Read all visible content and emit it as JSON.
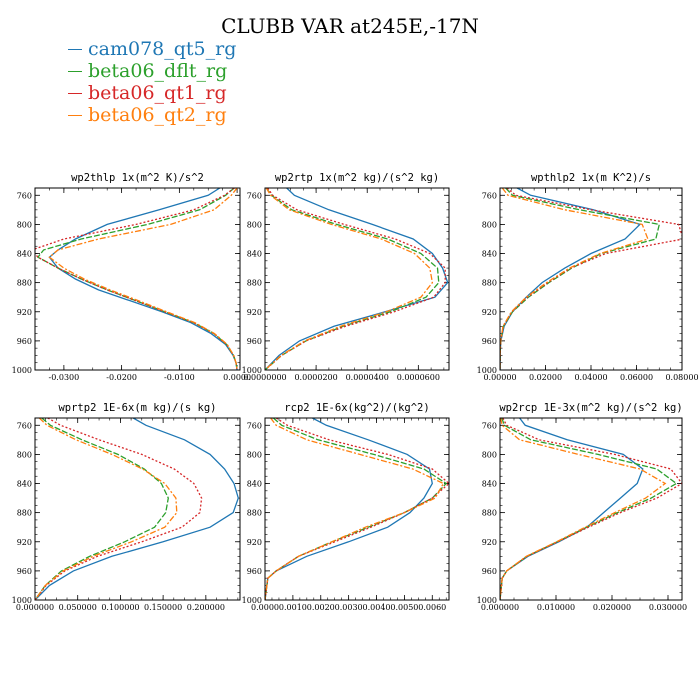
{
  "title": "CLUBB VAR at245E,-17N",
  "legend": [
    {
      "name": "cam078_qt5_rg",
      "color": "#1f77b4"
    },
    {
      "name": "beta06_dflt_rg",
      "color": "#2ca02c"
    },
    {
      "name": "beta06_qt1_rg",
      "color": "#d62728"
    },
    {
      "name": "beta06_qt2_rg",
      "color": "#ff7f0e"
    }
  ],
  "chart_data": [
    {
      "type": "line",
      "title": "wp2thlp   1x(m^2 K)/s^2",
      "xlim": [
        -0.035,
        0.0005
      ],
      "ylim": [
        1000,
        750
      ],
      "xticks": [
        -0.03,
        -0.02,
        -0.01,
        0.0
      ],
      "xtick_labels": [
        "-0.0300",
        "-0.0200",
        "-0.0100",
        "0.0000"
      ],
      "yticks": [
        760,
        800,
        840,
        880,
        920,
        960,
        1000
      ],
      "y": [
        750,
        760,
        780,
        800,
        820,
        835,
        845,
        860,
        875,
        890,
        905,
        920,
        935,
        950,
        965,
        980,
        990,
        1000
      ],
      "series": [
        {
          "name": "cam078_qt5_rg",
          "x": [
            -0.003,
            -0.005,
            -0.0135,
            -0.0225,
            -0.028,
            -0.031,
            -0.0325,
            -0.031,
            -0.028,
            -0.024,
            -0.0185,
            -0.013,
            -0.008,
            -0.0045,
            -0.002,
            -0.0007,
            -0.0002,
            0.0
          ]
        },
        {
          "name": "beta06_dflt_rg",
          "x": [
            -0.0005,
            -0.002,
            -0.0065,
            -0.0155,
            -0.027,
            -0.0335,
            -0.0345,
            -0.031,
            -0.027,
            -0.0225,
            -0.0175,
            -0.0125,
            -0.0075,
            -0.004,
            -0.0018,
            -0.0006,
            -0.0002,
            0.0
          ]
        },
        {
          "name": "beta06_qt1_rg",
          "x": [
            -0.0005,
            -0.0022,
            -0.0075,
            -0.0175,
            -0.03,
            -0.0355,
            -0.0345,
            -0.031,
            -0.027,
            -0.0225,
            -0.0175,
            -0.0125,
            -0.0075,
            -0.004,
            -0.0018,
            -0.0006,
            -0.0002,
            0.0
          ]
        },
        {
          "name": "beta06_qt2_rg",
          "x": [
            0.0,
            -0.001,
            -0.004,
            -0.0115,
            -0.024,
            -0.031,
            -0.0325,
            -0.03,
            -0.0265,
            -0.022,
            -0.017,
            -0.0122,
            -0.0073,
            -0.0039,
            -0.0017,
            -0.0006,
            -0.0002,
            0.0
          ]
        }
      ]
    },
    {
      "type": "line",
      "title": "wp2rtp   1x(m^2 kg)/(s^2 kg)",
      "xlim": [
        0,
        7.2e-05
      ],
      "ylim": [
        1000,
        750
      ],
      "xticks": [
        0,
        2e-05,
        4e-05,
        6e-05
      ],
      "xtick_labels": [
        "0.0000000",
        "0.0000200",
        "0.0000400",
        "0.0000600"
      ],
      "yticks": [
        760,
        800,
        840,
        880,
        920,
        960,
        1000
      ],
      "y": [
        750,
        760,
        780,
        800,
        820,
        840,
        860,
        880,
        900,
        920,
        940,
        960,
        980,
        1000
      ],
      "series": [
        {
          "name": "cam078_qt5_rg",
          "x": [
            8.5e-06,
            1.15e-05,
            2.5e-05,
            4.2e-05,
            5.8e-05,
            6.55e-05,
            6.95e-05,
            7.15e-05,
            6.65e-05,
            4.7e-05,
            2.7e-05,
            1.35e-05,
            5.5e-06,
            0.0
          ]
        },
        {
          "name": "beta06_dflt_rg",
          "x": [
            5e-07,
            2.5e-06,
            1.05e-05,
            2.8e-05,
            4.8e-05,
            6.1e-05,
            6.75e-05,
            6.8e-05,
            6.3e-05,
            4.9e-05,
            3.05e-05,
            1.6e-05,
            6.5e-06,
            0.0
          ]
        },
        {
          "name": "beta06_qt1_rg",
          "x": [
            1e-06,
            3e-06,
            1.25e-05,
            3.1e-05,
            5.1e-05,
            6.45e-05,
            7.05e-05,
            7.05e-05,
            6.6e-05,
            5.05e-05,
            3.15e-05,
            1.6e-05,
            6.5e-06,
            0.0
          ]
        },
        {
          "name": "beta06_qt2_rg",
          "x": [
            5e-07,
            2.2e-06,
            9.5e-06,
            2.6e-05,
            4.55e-05,
            5.85e-05,
            6.45e-05,
            6.55e-05,
            6.1e-05,
            4.75e-05,
            2.95e-05,
            1.55e-05,
            6.3e-06,
            0.0
          ]
        }
      ]
    },
    {
      "type": "line",
      "title": "wpthlp2   1x(m K^2)/s",
      "xlim": [
        0,
        0.08
      ],
      "ylim": [
        1000,
        750
      ],
      "xticks": [
        0,
        0.02,
        0.04,
        0.06,
        0.08
      ],
      "xtick_labels": [
        "0.00000",
        "0.02000",
        "0.04000",
        "0.06000",
        "0.08000"
      ],
      "yticks": [
        760,
        800,
        840,
        880,
        920,
        960,
        1000
      ],
      "y": [
        750,
        760,
        780,
        800,
        820,
        840,
        860,
        880,
        900,
        920,
        940,
        960,
        975,
        1000
      ],
      "series": [
        {
          "name": "cam078_qt5_rg",
          "x": [
            0.0075,
            0.0135,
            0.041,
            0.0615,
            0.055,
            0.04,
            0.0285,
            0.0185,
            0.0115,
            0.0055,
            0.0018,
            0.0004,
            0.0001,
            0.0
          ]
        },
        {
          "name": "beta06_dflt_rg",
          "x": [
            0.0025,
            0.0055,
            0.035,
            0.07,
            0.0685,
            0.0445,
            0.0315,
            0.0215,
            0.0125,
            0.0055,
            0.0015,
            0.0003,
            0.0001,
            0.0
          ]
        },
        {
          "name": "beta06_qt1_rg",
          "x": [
            0.003,
            0.007,
            0.04,
            0.0785,
            0.0805,
            0.0465,
            0.031,
            0.021,
            0.012,
            0.0052,
            0.0014,
            0.0003,
            0.0001,
            0.0
          ]
        },
        {
          "name": "beta06_qt2_rg",
          "x": [
            0.001,
            0.0035,
            0.0285,
            0.0625,
            0.065,
            0.044,
            0.0305,
            0.0205,
            0.0115,
            0.005,
            0.0013,
            0.0003,
            0.0001,
            0.0
          ]
        }
      ]
    },
    {
      "type": "line",
      "title": "wprtp2   1E-6x(m kg)/(s kg)",
      "xlim": [
        0,
        0.24
      ],
      "ylim": [
        1000,
        750
      ],
      "xticks": [
        0,
        0.05,
        0.1,
        0.15,
        0.2
      ],
      "xtick_labels": [
        "0.000000",
        "0.050000",
        "0.100000",
        "0.150000",
        "0.200000"
      ],
      "yticks": [
        760,
        800,
        840,
        880,
        920,
        960,
        1000
      ],
      "y": [
        750,
        760,
        780,
        800,
        820,
        840,
        860,
        880,
        900,
        920,
        940,
        960,
        980,
        1000
      ],
      "series": [
        {
          "name": "cam078_qt5_rg",
          "x": [
            0.115,
            0.13,
            0.175,
            0.205,
            0.222,
            0.233,
            0.238,
            0.232,
            0.205,
            0.15,
            0.09,
            0.045,
            0.017,
            0.0
          ]
        },
        {
          "name": "beta06_dflt_rg",
          "x": [
            0.008,
            0.018,
            0.055,
            0.097,
            0.128,
            0.148,
            0.156,
            0.153,
            0.14,
            0.105,
            0.064,
            0.031,
            0.012,
            0.0
          ]
        },
        {
          "name": "beta06_qt1_rg",
          "x": [
            0.015,
            0.03,
            0.075,
            0.125,
            0.163,
            0.186,
            0.195,
            0.193,
            0.172,
            0.125,
            0.073,
            0.035,
            0.013,
            0.0
          ]
        },
        {
          "name": "beta06_qt2_rg",
          "x": [
            0.005,
            0.014,
            0.048,
            0.09,
            0.126,
            0.152,
            0.165,
            0.166,
            0.152,
            0.113,
            0.068,
            0.033,
            0.012,
            0.0
          ]
        }
      ]
    },
    {
      "type": "line",
      "title": "rcp2   1E-6x(kg^2)/(kg^2)",
      "xlim": [
        0,
        0.0066
      ],
      "ylim": [
        1000,
        750
      ],
      "xticks": [
        0,
        0.001,
        0.002,
        0.003,
        0.004,
        0.005,
        0.006
      ],
      "xtick_labels": [
        "0.0000",
        "0.0010",
        "0.0020",
        "0.0030",
        "0.0040",
        "0.0050",
        "0.0060"
      ],
      "yticks": [
        760,
        800,
        840,
        880,
        920,
        960,
        1000
      ],
      "y": [
        750,
        760,
        780,
        800,
        820,
        840,
        860,
        880,
        900,
        920,
        940,
        960,
        970,
        1000
      ],
      "series": [
        {
          "name": "cam078_qt5_rg",
          "x": [
            0.0017,
            0.0022,
            0.0037,
            0.0051,
            0.0059,
            0.006,
            0.0057,
            0.0052,
            0.0044,
            0.003,
            0.0015,
            0.0004,
            0.0001,
            0.0
          ]
        },
        {
          "name": "beta06_dflt_rg",
          "x": [
            0.0003,
            0.0006,
            0.0019,
            0.0039,
            0.0057,
            0.0065,
            0.006,
            0.005,
            0.0037,
            0.0024,
            0.0012,
            0.0004,
            0.0001,
            0.0
          ]
        },
        {
          "name": "beta06_qt1_rg",
          "x": [
            0.0004,
            0.0008,
            0.0023,
            0.0044,
            0.006,
            0.0066,
            0.006,
            0.005,
            0.0038,
            0.0025,
            0.0012,
            0.0004,
            0.0001,
            0.0
          ]
        },
        {
          "name": "beta06_qt2_rg",
          "x": [
            0.0002,
            0.0004,
            0.0015,
            0.0034,
            0.0053,
            0.0064,
            0.0061,
            0.005,
            0.0036,
            0.0024,
            0.0012,
            0.0004,
            0.0001,
            0.0
          ]
        }
      ]
    },
    {
      "type": "line",
      "title": "wp2rcp   1E-3x(m^2 kg)/(s^2 kg)",
      "xlim": [
        0,
        0.0325
      ],
      "ylim": [
        1000,
        750
      ],
      "xticks": [
        0,
        0.01,
        0.02,
        0.03
      ],
      "xtick_labels": [
        "0.000000",
        "0.010000",
        "0.020000",
        "0.030000"
      ],
      "yticks": [
        760,
        800,
        840,
        880,
        920,
        960,
        1000
      ],
      "y": [
        750,
        760,
        780,
        800,
        820,
        840,
        860,
        880,
        900,
        920,
        940,
        960,
        970,
        1000
      ],
      "series": [
        {
          "name": "cam078_qt5_rg",
          "x": [
            0.0035,
            0.0045,
            0.012,
            0.022,
            0.0255,
            0.0245,
            0.0215,
            0.0185,
            0.0155,
            0.0105,
            0.005,
            0.0012,
            0.0004,
            0.0
          ]
        },
        {
          "name": "beta06_dflt_rg",
          "x": [
            0.0003,
            0.0008,
            0.0055,
            0.0175,
            0.028,
            0.0315,
            0.027,
            0.021,
            0.0155,
            0.0102,
            0.0048,
            0.0012,
            0.0004,
            0.0
          ]
        },
        {
          "name": "beta06_qt1_rg",
          "x": [
            0.0005,
            0.0012,
            0.007,
            0.0205,
            0.0305,
            0.0325,
            0.028,
            0.0215,
            0.0158,
            0.0103,
            0.0048,
            0.0012,
            0.0004,
            0.0
          ]
        },
        {
          "name": "beta06_qt2_rg",
          "x": [
            0.0001,
            0.0004,
            0.0035,
            0.014,
            0.025,
            0.0295,
            0.026,
            0.0205,
            0.0152,
            0.0101,
            0.0047,
            0.0012,
            0.0004,
            0.0
          ]
        }
      ]
    }
  ]
}
